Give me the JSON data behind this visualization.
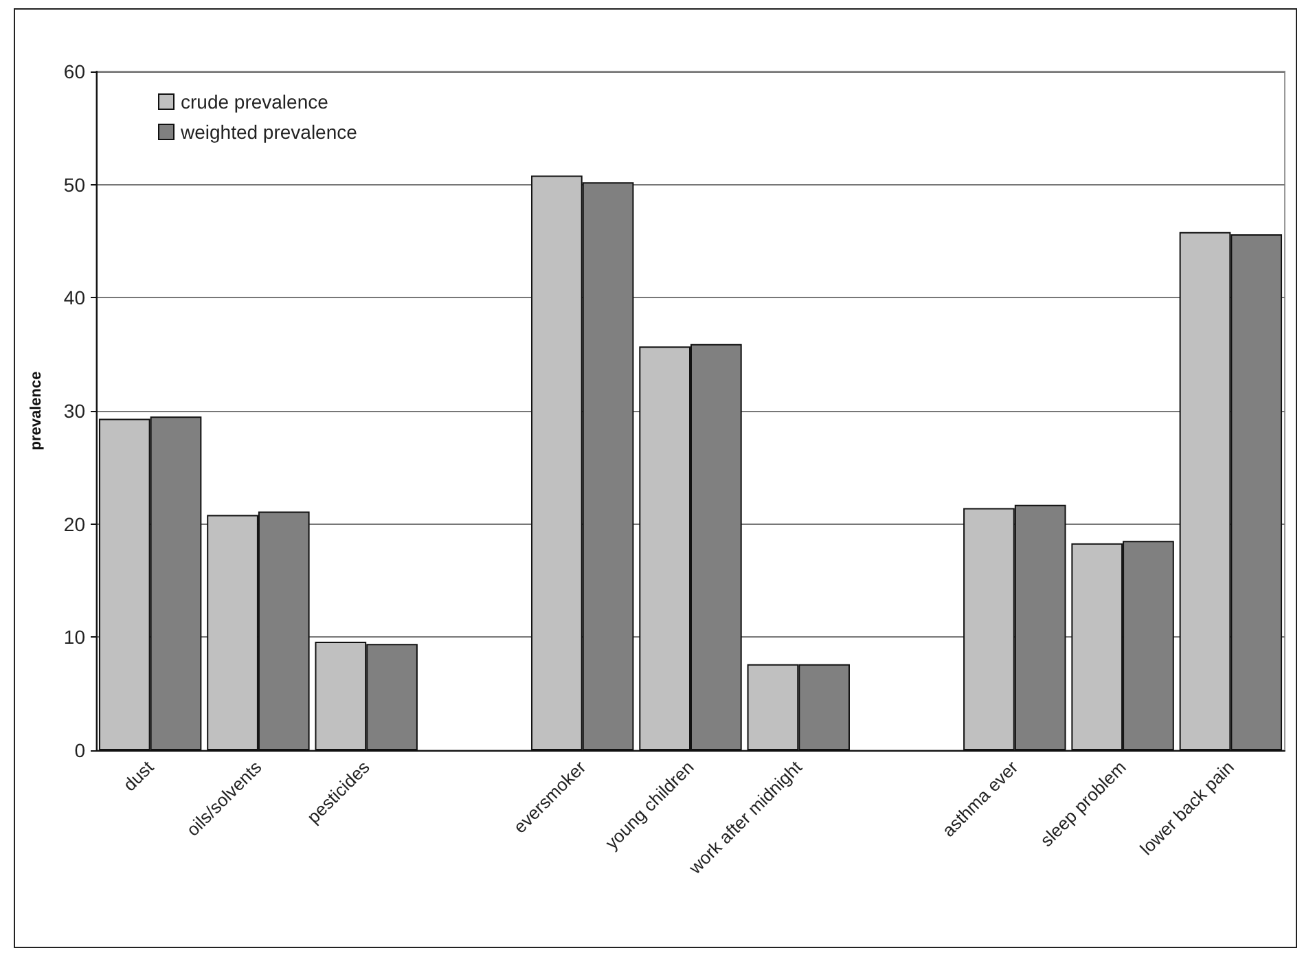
{
  "chart_data": {
    "type": "bar",
    "ylabel": "prevalence",
    "categories": [
      "dust",
      "oils/solvents",
      "pesticides",
      null,
      "eversmoker",
      "young children",
      "work after midnight",
      null,
      "asthma ever",
      "sleep problem",
      "lower back pain"
    ],
    "series": [
      {
        "name": "crude prevalence",
        "color": "#c0c0c0",
        "values": [
          29.3,
          20.8,
          9.6,
          null,
          50.8,
          35.7,
          7.6,
          null,
          21.4,
          18.3,
          45.8
        ]
      },
      {
        "name": "weighted prevalence",
        "color": "#808080",
        "values": [
          29.5,
          21.1,
          9.4,
          null,
          50.2,
          35.9,
          7.6,
          null,
          21.7,
          18.5,
          45.6
        ]
      }
    ],
    "ylim": [
      0,
      60
    ],
    "yticks": [
      0,
      10,
      20,
      30,
      40,
      50,
      60
    ],
    "grid": "y",
    "legend": "top left"
  }
}
